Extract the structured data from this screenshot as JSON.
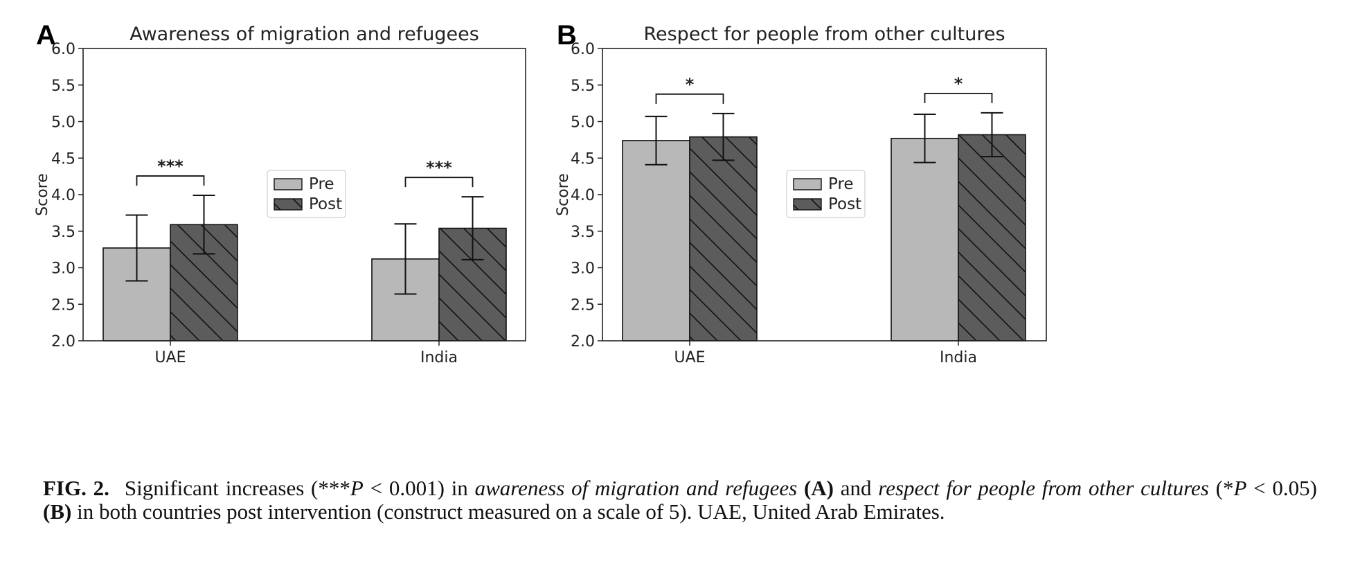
{
  "chart_data": [
    {
      "panel": "A",
      "type": "bar",
      "title": "Awareness of migration and refugees",
      "ylabel": "Score",
      "xlabel": "",
      "ylim": [
        2.0,
        6.0
      ],
      "yticks": [
        "2.0",
        "2.5",
        "3.0",
        "3.5",
        "4.0",
        "4.5",
        "5.0",
        "5.5",
        "6.0"
      ],
      "categories": [
        "UAE",
        "India"
      ],
      "series": [
        {
          "name": "Pre",
          "color": "#b8b8b8",
          "hatch": false,
          "values": [
            3.27,
            3.12
          ],
          "error": [
            0.45,
            0.48
          ]
        },
        {
          "name": "Post",
          "color": "#5c5c5c",
          "hatch": true,
          "values": [
            3.59,
            3.54
          ],
          "error": [
            0.4,
            0.43
          ]
        }
      ],
      "significance": [
        "***",
        "***"
      ],
      "legend": "center",
      "grid": false
    },
    {
      "panel": "B",
      "type": "bar",
      "title": "Respect for people from other cultures",
      "ylabel": "Score",
      "xlabel": "",
      "ylim": [
        2.0,
        6.0
      ],
      "yticks": [
        "2.0",
        "2.5",
        "3.0",
        "3.5",
        "4.0",
        "4.5",
        "5.0",
        "5.5",
        "6.0"
      ],
      "categories": [
        "UAE",
        "India"
      ],
      "series": [
        {
          "name": "Pre",
          "color": "#b8b8b8",
          "hatch": false,
          "values": [
            4.74,
            4.77
          ],
          "error": [
            0.33,
            0.33
          ]
        },
        {
          "name": "Post",
          "color": "#5c5c5c",
          "hatch": true,
          "values": [
            4.79,
            4.82
          ],
          "error": [
            0.32,
            0.3
          ]
        }
      ],
      "significance": [
        "*",
        "*"
      ],
      "legend": "center",
      "grid": false
    }
  ],
  "caption": {
    "label": "FIG. 2.",
    "t1": "Significant increases (***",
    "p1": "P",
    "t2": " < 0.001) in ",
    "i1": "awareness of migration and refugees",
    "b1": " (A)",
    "t3": " and ",
    "i2": "respect for people from other cultures",
    "t4": " (*",
    "p2": "P",
    "t5": " < 0.05) ",
    "b2": "(B)",
    "t6": " in both countries post intervention (construct measured on a scale of 5). UAE, United Arab Emirates."
  }
}
